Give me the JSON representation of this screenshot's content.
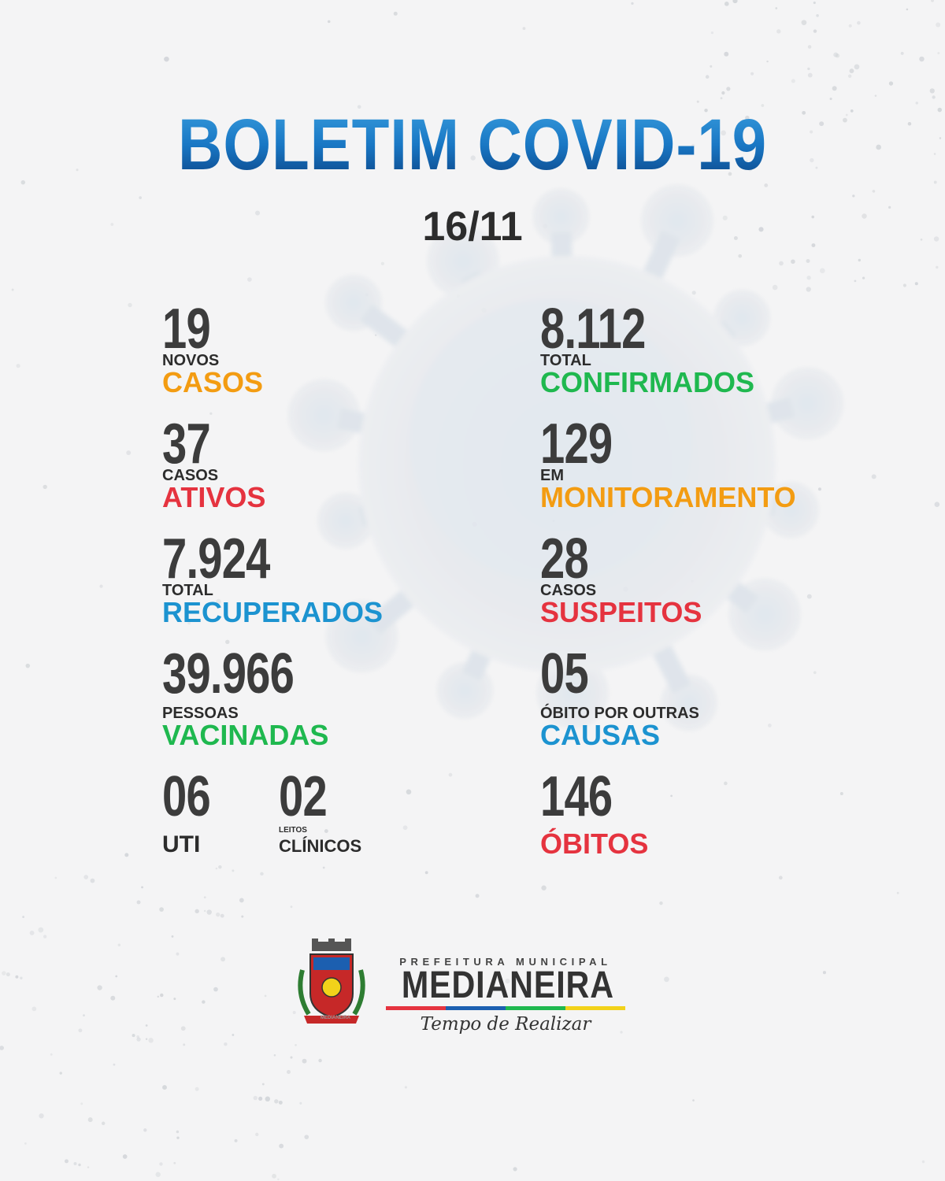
{
  "header": {
    "title": "BOLETIM COVID-19",
    "date": "16/11"
  },
  "stats": {
    "novos_casos": {
      "value": "19",
      "line1": "NOVOS",
      "line2": "CASOS"
    },
    "casos_ativos": {
      "value": "37",
      "line1": "CASOS",
      "line2": "ATIVOS"
    },
    "recuperados": {
      "value": "7.924",
      "line1": "TOTAL",
      "line2": "RECUPERADOS"
    },
    "vacinadas": {
      "value": "39.966",
      "line1": "PESSOAS",
      "line2": "VACINADAS"
    },
    "uti": {
      "value": "06",
      "label": "UTI"
    },
    "leitos_clinicos": {
      "value": "02",
      "line1": "LEITOS",
      "line2": "CLÍNICOS"
    },
    "confirmados": {
      "value": "8.112",
      "line1": "TOTAL",
      "line2": "CONFIRMADOS"
    },
    "monitoramento": {
      "value": "129",
      "line1": "EM",
      "line2": "MONITORAMENTO"
    },
    "suspeitos": {
      "value": "28",
      "line1": "CASOS",
      "line2": "SUSPEITOS"
    },
    "outras_causas": {
      "value": "05",
      "line1": "ÓBITO POR OUTRAS",
      "line2": "CAUSAS"
    },
    "obitos": {
      "value": "146",
      "label": "ÓBITOS"
    }
  },
  "footer": {
    "crest_text": "MEDIANEIRA",
    "prefeitura": "PREFEITURA MUNICIPAL",
    "city": "MEDIANEIRA",
    "slogan": "Tempo de Realizar"
  },
  "colors": {
    "orange": "#f39c12",
    "green": "#1fb84f",
    "red": "#e5333f",
    "blue": "#1c93d0",
    "title_gradient": [
      "#3a9ede",
      "#1977c4",
      "#0a3f80"
    ]
  },
  "icons": {
    "virus": "virus-illustration",
    "crest": "city-crest-icon"
  }
}
